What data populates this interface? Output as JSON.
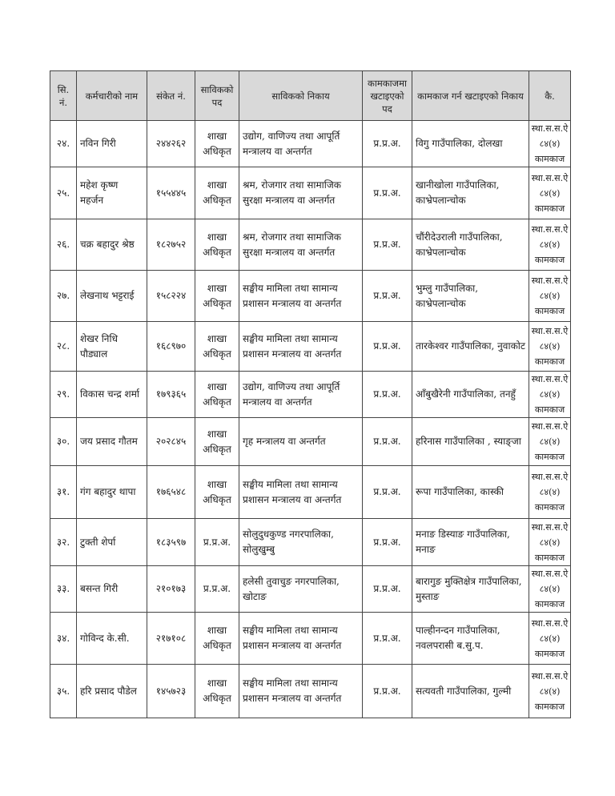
{
  "headers": [
    "सि. नं.",
    "कर्मचारीको नाम",
    "संकेत नं.",
    "साविकको पद",
    "साविकको निकाय",
    "कामकाजमा खटाइएको पद",
    "कामकाज गर्न खटाइएको निकाय",
    "कै."
  ],
  "rows": [
    {
      "sn": "२४.",
      "name": "नविन गिरी",
      "code": "२४४२६२",
      "post": "शाखा अधिकृत",
      "office": "उद्योग, वाणिज्य तथा आपूर्ति मन्त्रालय वा अन्तर्गत",
      "new_post": "प्र.प्र.अ.",
      "new_office": "विगु गाउँपालिका, दोलखा",
      "remarks": "स्था.स.स.ऐ ८४(४) कामकाज"
    },
    {
      "sn": "२५.",
      "name": "महेश कृष्ण महर्जन",
      "code": "१५५४४५",
      "post": "शाखा अधिकृत",
      "office": "श्रम, रोजगार तथा सामाजिक सुरक्षा मन्त्रालय वा अन्तर्गत",
      "new_post": "प्र.प्र.अ.",
      "new_office": "खानीखोला गाउँपालिका, काभ्रेपलान्चोक",
      "remarks": "स्था.स.स.ऐ ८४(४) कामकाज"
    },
    {
      "sn": "२६.",
      "name": "चक्र बहादुर श्रेष्ठ",
      "code": "१८२७५२",
      "post": "शाखा अधिकृत",
      "office": "श्रम, रोजगार तथा सामाजिक सुरक्षा मन्त्रालय वा अन्तर्गत",
      "new_post": "प्र.प्र.अ.",
      "new_office": "चौंरीदेउराली गाउँपालिका, काभ्रेपलान्चोक",
      "remarks": "स्था.स.स.ऐ ८४(४) कामकाज"
    },
    {
      "sn": "२७.",
      "name": "लेखनाथ भट्टराई",
      "code": "१५८२२४",
      "post": "शाखा अधिकृत",
      "office": "सङ्घीय मामिला तथा सामान्य प्रशासन मन्त्रालय वा अन्तर्गत",
      "new_post": "प्र.प्र.अ.",
      "new_office": "भुम्लु गाउँपालिका, काभ्रेपलान्चोक",
      "remarks": "स्था.स.स.ऐ ८४(४) कामकाज"
    },
    {
      "sn": "२८.",
      "name": "शेखर निधि पौड्याल",
      "code": "१६८९७०",
      "post": "शाखा अधिकृत",
      "office": "सङ्घीय मामिला तथा सामान्य प्रशासन मन्त्रालय वा अन्तर्गत",
      "new_post": "प्र.प्र.अ.",
      "new_office": "तारकेश्वर गाउँपालिका, नुवाकोट",
      "remarks": "स्था.स.स.ऐ ८४(४) कामकाज"
    },
    {
      "sn": "२९.",
      "name": "विकास चन्द्र शर्मा",
      "code": "१७९३६५",
      "post": "शाखा अधिकृत",
      "office": "उद्योग, वाणिज्य तथा आपूर्ति मन्त्रालय वा अन्तर्गत",
      "new_post": "प्र.प्र.अ.",
      "new_office": "आँबुखैरेनी गाउँपालिका, तनहुँ",
      "remarks": "स्था.स.स.ऐ ८४(४) कामकाज"
    },
    {
      "sn": "३०.",
      "name": "जय प्रसाद गौतम",
      "code": "२०२८४५",
      "post": "शाखा अधिकृत",
      "office": "गृह मन्त्रालय वा अन्तर्गत",
      "new_post": "प्र.प्र.अ.",
      "new_office": "हरिनास गाउँपालिका , स्याङ्जा",
      "remarks": "स्था.स.स.ऐ ८४(४) कामकाज"
    },
    {
      "sn": "३१.",
      "name": "गंग बहादुर थापा",
      "code": "१७६५४८",
      "post": "शाखा अधिकृत",
      "office": "सङ्घीय मामिला तथा सामान्य प्रशासन मन्त्रालय वा अन्तर्गत",
      "new_post": "प्र.प्र.अ.",
      "new_office": "रूपा गाउँपालिका, कास्की",
      "remarks": "स्था.स.स.ऐ ८४(४) कामकाज"
    },
    {
      "sn": "३२.",
      "name": "टुक्ती शेर्पा",
      "code": "१८३५९७",
      "post": "प्र.प्र.अ.",
      "office": "सोलुदुधकुण्ड नगरपालिका, सोलुखुम्बु",
      "new_post": "प्र.प्र.अ.",
      "new_office": "मनाङ डिस्याङ गाउँपालिका, मनाङ",
      "remarks": "स्था.स.स.ऐ ८४(४) कामकाज"
    },
    {
      "sn": "३३.",
      "name": "बसन्त गिरी",
      "code": "२१०१७३",
      "post": "प्र.प्र.अ.",
      "office": "हलेसी तुवाचुङ नगरपालिका, खोटाङ",
      "new_post": "प्र.प्र.अ.",
      "new_office": "बारागुङ मुक्तिक्षेत्र गाउँपालिका, मुस्ताङ",
      "remarks": "स्था.स.स.ऐ ८४(४) कामकाज"
    },
    {
      "sn": "३४.",
      "name": "गोविन्द के.सी.",
      "code": "२१७१०८",
      "post": "शाखा अधिकृत",
      "office": "सङ्घीय मामिला तथा सामान्य प्रशासन मन्त्रालय वा अन्तर्गत",
      "new_post": "प्र.प्र.अ.",
      "new_office": "पाल्हीनन्दन गाउँपालिका, नवलपरासी ब.सु.प.",
      "remarks": "स्था.स.स.ऐ ८४(४) कामकाज"
    },
    {
      "sn": "३५.",
      "name": "हरि प्रसाद पौडेल",
      "code": "१४५७२३",
      "post": "शाखा अधिकृत",
      "office": "सङ्घीय मामिला तथा सामान्य प्रशासन मन्त्रालय वा अन्तर्गत",
      "new_post": "प्र.प्र.अ.",
      "new_office": "सत्यवती गाउँपालिका, गुल्मी",
      "remarks": "स्था.स.स.ऐ ८४(४) कामकाज"
    }
  ]
}
